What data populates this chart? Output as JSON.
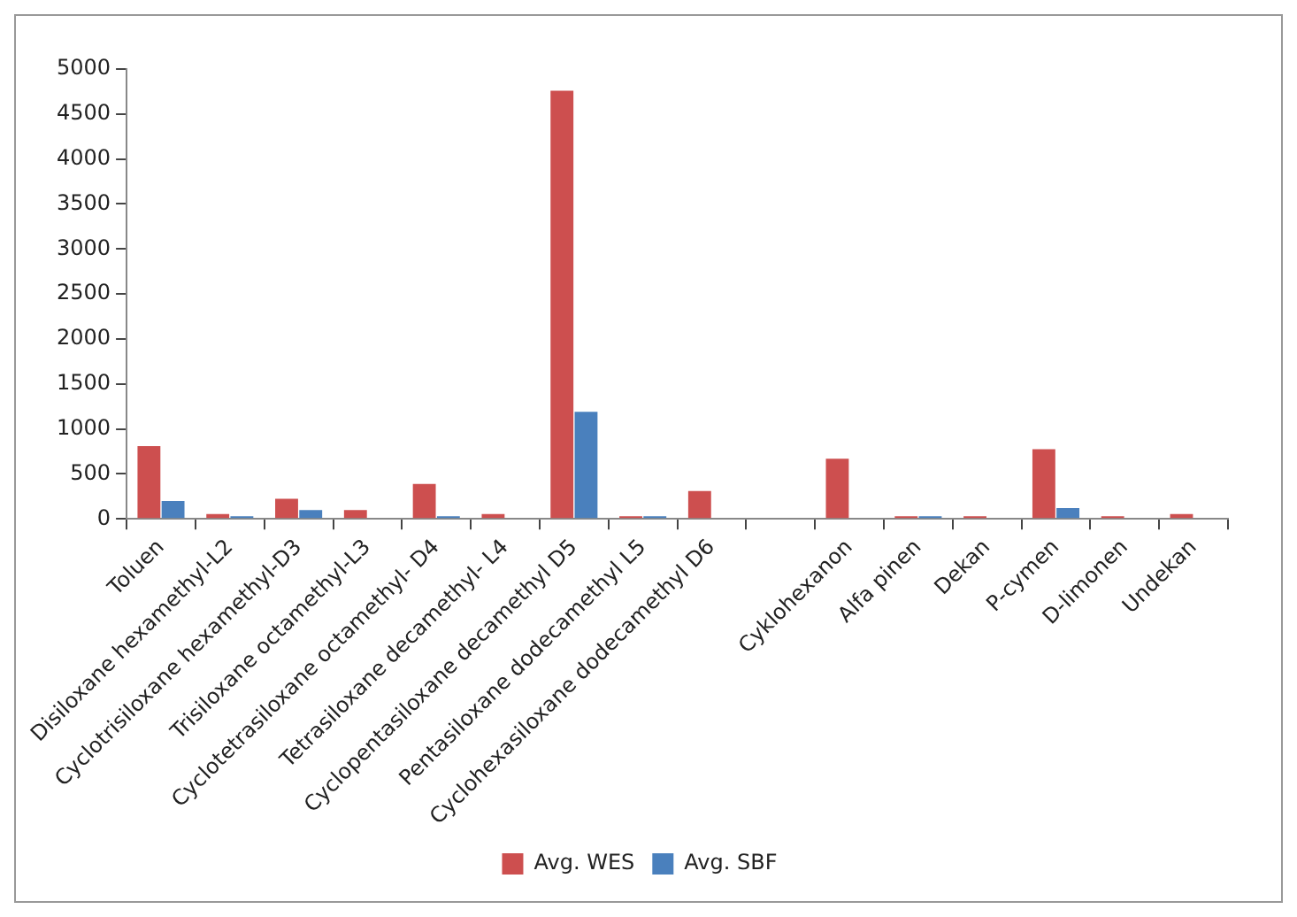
{
  "chart_data": {
    "type": "bar",
    "categories": [
      "Toluen",
      "Disiloxane hexamethyl-L2",
      "Cyclotrisiloxane hexamethyl-D3",
      "Trisiloxane octamethyl-L3",
      "Cyclotetrasiloxane octamethyl- D4",
      "Tetrasiloxane decamethyl- L4",
      "Cyclopentasiloxane decamethyl D5",
      "Pentasiloxane dodecamethyl L5",
      "Cyclohexasiloxane dodecamethyl D6",
      null,
      "Cyklohexanon",
      "Alfa pinen",
      "Dekan",
      "P-cymen",
      "D-limonen",
      "Undekan"
    ],
    "series": [
      {
        "name": "Avg. WES",
        "color": "#cd4f4f",
        "values": [
          810,
          55,
          225,
          100,
          390,
          55,
          4760,
          30,
          310,
          null,
          670,
          30,
          30,
          775,
          30,
          55
        ]
      },
      {
        "name": "Avg. SBF",
        "color": "#4a80bd",
        "values": [
          200,
          30,
          100,
          0,
          30,
          0,
          1190,
          30,
          0,
          null,
          0,
          30,
          0,
          120,
          0,
          0
        ]
      }
    ],
    "ylim": [
      0,
      5000
    ],
    "yticks": [
      0,
      500,
      1000,
      1500,
      2000,
      2500,
      3000,
      3500,
      4000,
      4500,
      5000
    ],
    "grid": false,
    "legend": "bottom"
  }
}
